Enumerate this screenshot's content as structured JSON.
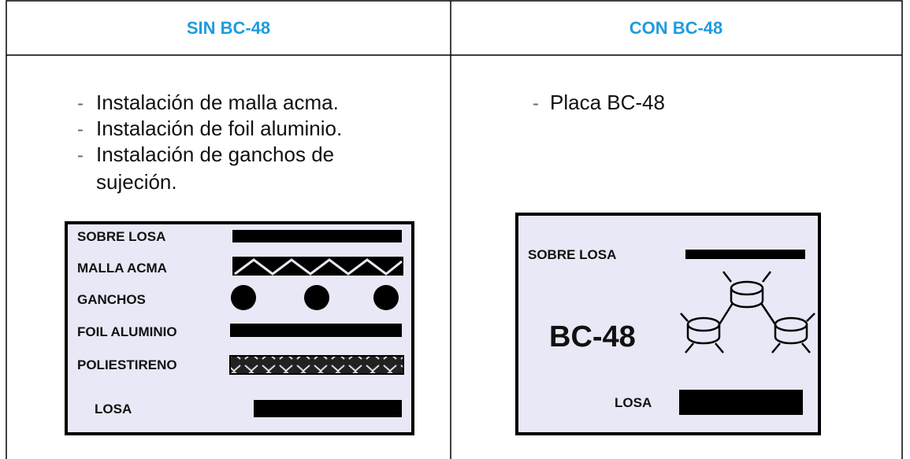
{
  "table": {
    "headers": [
      "SIN BC-48",
      "CON BC-48"
    ],
    "left": {
      "items": [
        "Instalación de malla acma.",
        "Instalación de foil aluminio.",
        "Instalación de ganchos de",
        "sujeción."
      ],
      "diagram": [
        "SOBRE LOSA",
        "MALLA ACMA",
        "GANCHOS",
        "FOIL ALUMINIO",
        "POLIESTIRENO",
        "LOSA"
      ]
    },
    "right": {
      "items": [
        "Placa BC-48"
      ],
      "diagram": [
        "SOBRE LOSA",
        "BC-48",
        "LOSA"
      ]
    }
  }
}
